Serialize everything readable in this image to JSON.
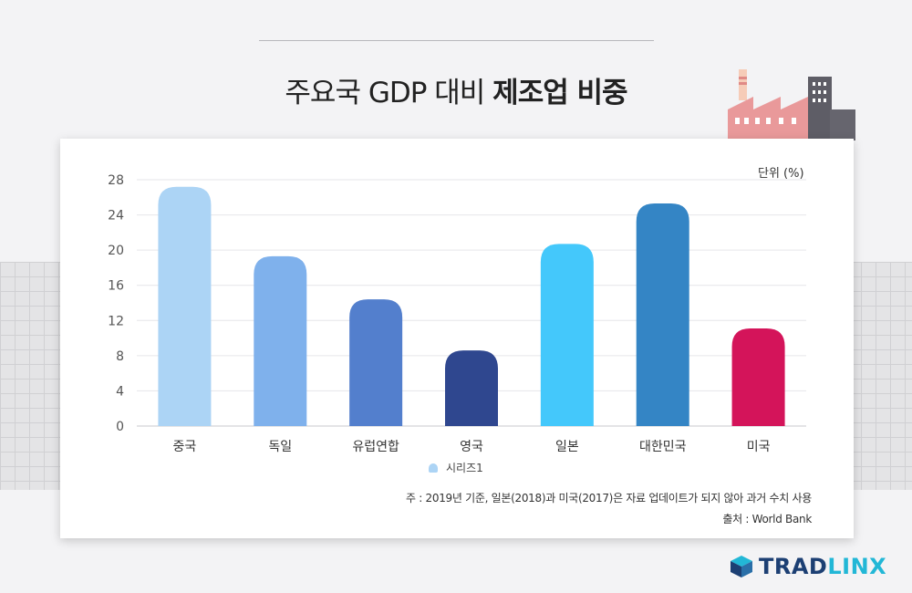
{
  "header": {
    "title_regular": "주요국 GDP 대비",
    "title_bold": "제조업 비중"
  },
  "chart_data": {
    "type": "bar",
    "title": "주요국 GDP 대비 제조업 비중",
    "unit_label": "단위 (%)",
    "categories": [
      "중국",
      "독일",
      "유럽연합",
      "영국",
      "일본",
      "대한민국",
      "미국"
    ],
    "series": [
      {
        "name": "시리즈1",
        "values": [
          27.2,
          19.3,
          14.4,
          8.6,
          20.7,
          25.3,
          11.1
        ]
      }
    ],
    "bar_colors": [
      "#acd4f5",
      "#7fb1ec",
      "#537fcd",
      "#2f478f",
      "#44c8fb",
      "#3485c5",
      "#d4145a"
    ],
    "ylim": [
      0,
      28
    ],
    "yticks": [
      0,
      4,
      8,
      12,
      16,
      20,
      24,
      28
    ],
    "grid": true,
    "legend_position": "bottom"
  },
  "footer": {
    "note": "주 : 2019년 기준, 일본(2018)과 미국(2017)은 자료 업데이트가 되지 않아 과거 수치 사용",
    "source": "출처 : World Bank"
  },
  "brand": {
    "logo_part1": "TRAD",
    "logo_part2": "LINX",
    "color_primary": "#1c3f73",
    "color_accent": "#22b7d6"
  },
  "decoration": {
    "icon": "factory-icon"
  }
}
